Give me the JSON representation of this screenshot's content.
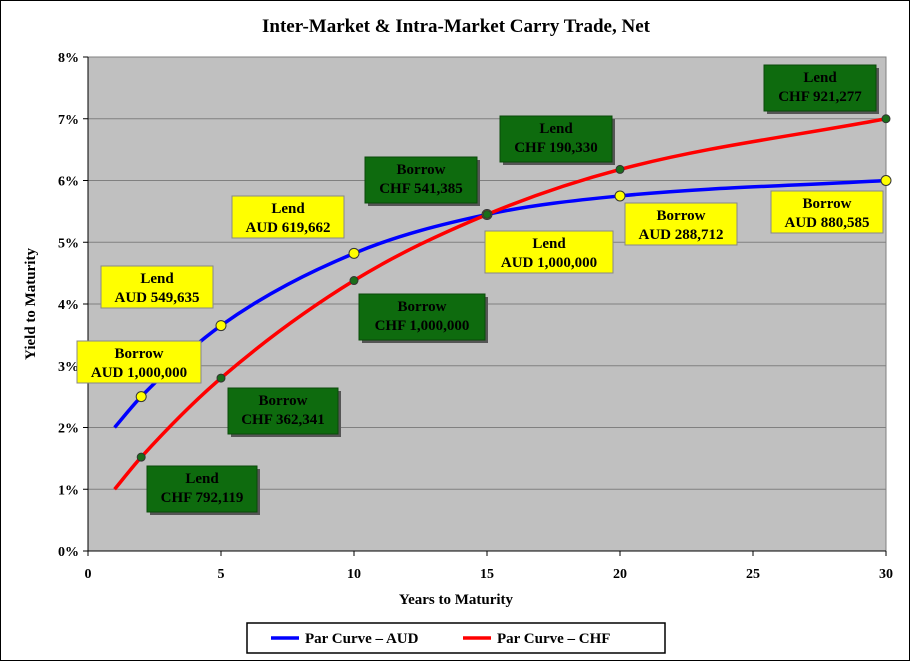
{
  "chart_data": {
    "type": "line",
    "title": "Inter-Market & Intra-Market Carry Trade, Net",
    "xlabel": "Years to Maturity",
    "ylabel": "Yield to Maturity",
    "xlim": [
      0,
      30
    ],
    "ylim": [
      0,
      8
    ],
    "x_ticks": [
      "0",
      "5",
      "10",
      "15",
      "20",
      "25",
      "30"
    ],
    "y_ticks": [
      "0%",
      "1%",
      "2%",
      "3%",
      "4%",
      "5%",
      "6%",
      "7%",
      "8%"
    ],
    "grid": true,
    "legend_position": "bottom",
    "series": [
      {
        "name": "Par Curve – AUD",
        "color": "#0000ff",
        "curve": {
          "x": [
            1,
            2,
            5,
            10,
            15,
            20,
            30
          ],
          "y": [
            2.0,
            2.5,
            3.65,
            4.82,
            5.45,
            5.75,
            6.0
          ]
        },
        "markers": [
          {
            "x": 2,
            "y": 2.5,
            "label": [
              "Borrow",
              "AUD 1,000,000"
            ]
          },
          {
            "x": 5,
            "y": 3.65,
            "label": [
              "Lend",
              "AUD 549,635"
            ]
          },
          {
            "x": 10,
            "y": 4.82,
            "label": [
              "Lend",
              "AUD 619,662"
            ]
          },
          {
            "x": 15,
            "y": 5.45,
            "label": [
              "Lend",
              "AUD 1,000,000"
            ]
          },
          {
            "x": 20,
            "y": 5.75,
            "label": [
              "Borrow",
              "AUD 288,712"
            ]
          },
          {
            "x": 30,
            "y": 6.0,
            "label": [
              "Borrow",
              "AUD 880,585"
            ]
          }
        ]
      },
      {
        "name": "Par Curve – CHF",
        "color": "#ff0000",
        "curve": {
          "x": [
            1,
            2,
            5,
            10,
            15,
            20,
            30
          ],
          "y": [
            1.0,
            1.52,
            2.8,
            4.38,
            5.45,
            6.18,
            7.0
          ]
        },
        "markers": [
          {
            "x": 2,
            "y": 1.52,
            "label": [
              "Lend",
              "CHF 792,119"
            ]
          },
          {
            "x": 5,
            "y": 2.8,
            "label": [
              "Borrow",
              "CHF 362,341"
            ]
          },
          {
            "x": 10,
            "y": 4.38,
            "label": [
              "Borrow",
              "CHF 1,000,000"
            ]
          },
          {
            "x": 15,
            "y": 5.45,
            "label": [
              "Borrow",
              "CHF 541,385"
            ]
          },
          {
            "x": 20,
            "y": 6.18,
            "label": [
              "Lend",
              "CHF 190,330"
            ]
          },
          {
            "x": 30,
            "y": 7.0,
            "label": [
              "Lend",
              "CHF 921,277"
            ]
          }
        ]
      }
    ],
    "colors": {
      "plot_background": "#c0c0c0",
      "aud_marker": "#ffff00",
      "chf_marker": "#1a6e1a",
      "aud_label_bg": "#ffff00",
      "chf_label_bg": "#0e6b0e"
    }
  }
}
